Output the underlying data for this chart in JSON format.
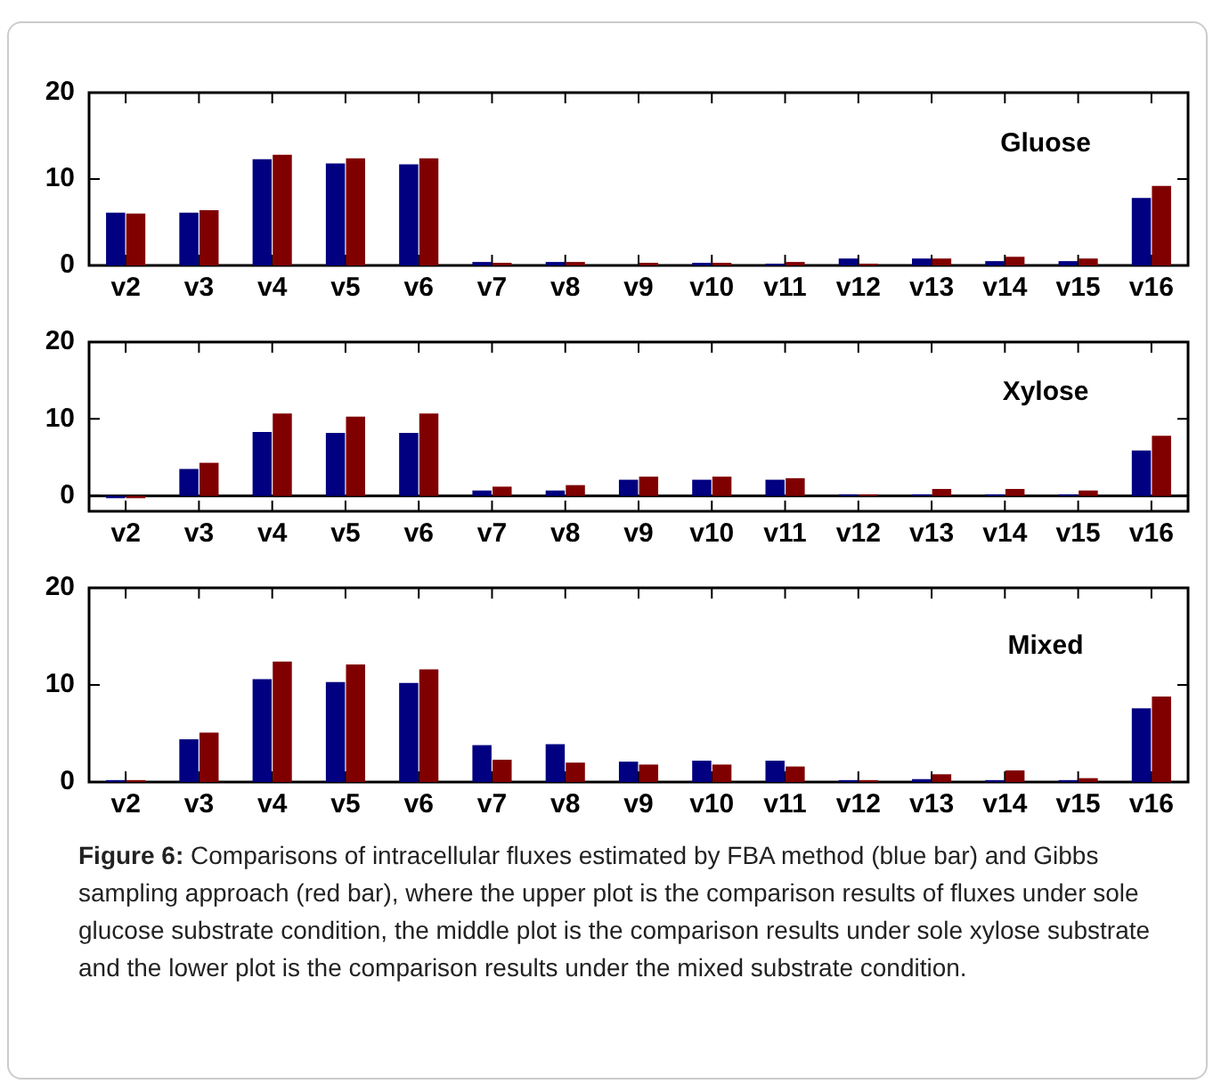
{
  "chart_data": [
    {
      "type": "bar",
      "categories": [
        "v2",
        "v3",
        "v4",
        "v5",
        "v6",
        "v7",
        "v8",
        "v9",
        "v10",
        "v11",
        "v12",
        "v13",
        "v14",
        "v15",
        "v16"
      ],
      "series": [
        {
          "color": "#000080",
          "values": [
            6.1,
            6.1,
            12.3,
            11.8,
            11.7,
            0.4,
            0.4,
            0,
            0.3,
            0.2,
            0.8,
            0.8,
            0.5,
            0.5,
            7.8
          ]
        },
        {
          "color": "#800000",
          "values": [
            6.0,
            6.4,
            12.8,
            12.4,
            12.4,
            0.3,
            0.4,
            0.3,
            0.3,
            0.4,
            0.2,
            0.8,
            1.0,
            0.8,
            9.2
          ]
        }
      ],
      "ylim": [
        0,
        20
      ],
      "yticks": [
        0,
        10,
        20
      ],
      "grid": false,
      "legend": false,
      "annotations": [
        "Gluose"
      ]
    },
    {
      "type": "bar",
      "categories": [
        "v2",
        "v3",
        "v4",
        "v5",
        "v6",
        "v7",
        "v8",
        "v9",
        "v10",
        "v11",
        "v12",
        "v13",
        "v14",
        "v15",
        "v16"
      ],
      "series": [
        {
          "color": "#000080",
          "values": [
            -0.3,
            3.5,
            8.3,
            8.2,
            8.2,
            0.7,
            0.7,
            2.1,
            2.1,
            2.1,
            0.2,
            0.2,
            0.2,
            0.2,
            5.9
          ]
        },
        {
          "color": "#800000",
          "values": [
            -0.3,
            4.3,
            10.7,
            10.3,
            10.7,
            1.2,
            1.4,
            2.5,
            2.5,
            2.3,
            0.2,
            0.9,
            0.9,
            0.7,
            7.8
          ]
        }
      ],
      "ylim": [
        -2,
        20
      ],
      "yticks": [
        0,
        10,
        20
      ],
      "grid": false,
      "legend": false,
      "ref_lines": [
        {
          "axis": "y",
          "value": 0,
          "color": "#000000"
        }
      ],
      "annotations": [
        "Xylose"
      ]
    },
    {
      "type": "bar",
      "categories": [
        "v2",
        "v3",
        "v4",
        "v5",
        "v6",
        "v7",
        "v8",
        "v9",
        "v10",
        "v11",
        "v12",
        "v13",
        "v14",
        "v15",
        "v16"
      ],
      "series": [
        {
          "color": "#000080",
          "values": [
            0.2,
            4.4,
            10.6,
            10.3,
            10.2,
            3.8,
            3.9,
            2.1,
            2.2,
            2.2,
            0.2,
            0.3,
            0.2,
            0.2,
            7.6
          ]
        },
        {
          "color": "#800000",
          "values": [
            0.2,
            5.1,
            12.4,
            12.1,
            11.6,
            2.3,
            2.0,
            1.8,
            1.8,
            1.6,
            0.2,
            0.8,
            1.2,
            0.4,
            8.8
          ]
        }
      ],
      "ylim": [
        0,
        20
      ],
      "yticks": [
        0,
        10,
        20
      ],
      "grid": false,
      "legend": false,
      "annotations": [
        "Mixed",
        "Figure 6:",
        "Comparisons of intracellular fluxes estimated by FBA method (blue bar) and Gibbs sampling approach (red bar), where the upper plot is the comparison results of fluxes under sole glucose substrate condition, the middle plot is the comparison results under sole xylose substrate and the lower plot is the comparison results under the mixed substrate condition."
      ]
    }
  ]
}
